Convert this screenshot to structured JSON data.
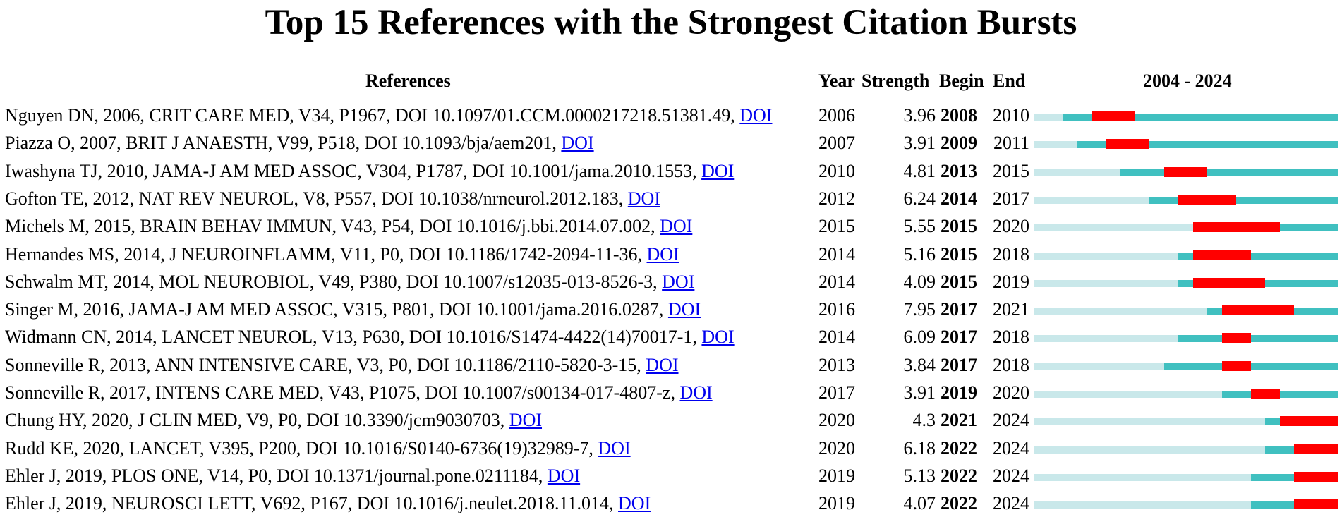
{
  "chart_data": {
    "type": "table",
    "title": "Top 15 References with the Strongest Citation Bursts",
    "columns": [
      "References",
      "Year",
      "Strength",
      "Begin",
      "End",
      "2004 - 2024"
    ],
    "range_start": 2004,
    "range_end": 2024,
    "link_label": "DOI",
    "colors": {
      "burst": "#ff0000",
      "active": "#40c0c0",
      "inactive": "#c9e8ea",
      "link": "#0000ee"
    },
    "rows": [
      {
        "reference": "Nguyen DN, 2006, CRIT CARE MED, V34, P1967, DOI 10.1097/01.CCM.0000217218.51381.49,",
        "year": 2006,
        "strength": "3.96",
        "begin": 2008,
        "end": 2010
      },
      {
        "reference": "Piazza O, 2007, BRIT J ANAESTH, V99, P518, DOI 10.1093/bja/aem201,",
        "year": 2007,
        "strength": "3.91",
        "begin": 2009,
        "end": 2011
      },
      {
        "reference": "Iwashyna TJ, 2010, JAMA-J AM MED ASSOC, V304, P1787, DOI 10.1001/jama.2010.1553,",
        "year": 2010,
        "strength": "4.81",
        "begin": 2013,
        "end": 2015
      },
      {
        "reference": "Gofton TE, 2012, NAT REV NEUROL, V8, P557, DOI 10.1038/nrneurol.2012.183,",
        "year": 2012,
        "strength": "6.24",
        "begin": 2014,
        "end": 2017
      },
      {
        "reference": "Michels M, 2015, BRAIN BEHAV IMMUN, V43, P54, DOI 10.1016/j.bbi.2014.07.002,",
        "year": 2015,
        "strength": "5.55",
        "begin": 2015,
        "end": 2020
      },
      {
        "reference": "Hernandes MS, 2014, J NEUROINFLAMM, V11, P0, DOI 10.1186/1742-2094-11-36,",
        "year": 2014,
        "strength": "5.16",
        "begin": 2015,
        "end": 2018
      },
      {
        "reference": "Schwalm MT, 2014, MOL NEUROBIOL, V49, P380, DOI 10.1007/s12035-013-8526-3,",
        "year": 2014,
        "strength": "4.09",
        "begin": 2015,
        "end": 2019
      },
      {
        "reference": "Singer M, 2016, JAMA-J AM MED ASSOC, V315, P801, DOI 10.1001/jama.2016.0287,",
        "year": 2016,
        "strength": "7.95",
        "begin": 2017,
        "end": 2021
      },
      {
        "reference": "Widmann CN, 2014, LANCET NEUROL, V13, P630, DOI 10.1016/S1474-4422(14)70017-1,",
        "year": 2014,
        "strength": "6.09",
        "begin": 2017,
        "end": 2018
      },
      {
        "reference": "Sonneville R, 2013, ANN INTENSIVE CARE, V3, P0, DOI 10.1186/2110-5820-3-15,",
        "year": 2013,
        "strength": "3.84",
        "begin": 2017,
        "end": 2018
      },
      {
        "reference": "Sonneville R, 2017, INTENS CARE MED, V43, P1075, DOI 10.1007/s00134-017-4807-z,",
        "year": 2017,
        "strength": "3.91",
        "begin": 2019,
        "end": 2020
      },
      {
        "reference": "Chung HY, 2020, J CLIN MED, V9, P0, DOI 10.3390/jcm9030703,",
        "year": 2020,
        "strength": "4.3",
        "begin": 2021,
        "end": 2024
      },
      {
        "reference": "Rudd KE, 2020, LANCET, V395, P200, DOI 10.1016/S0140-6736(19)32989-7,",
        "year": 2020,
        "strength": "6.18",
        "begin": 2022,
        "end": 2024
      },
      {
        "reference": "Ehler J, 2019, PLOS ONE, V14, P0, DOI 10.1371/journal.pone.0211184,",
        "year": 2019,
        "strength": "5.13",
        "begin": 2022,
        "end": 2024
      },
      {
        "reference": "Ehler J, 2019, NEUROSCI LETT, V692, P167, DOI 10.1016/j.neulet.2018.11.014,",
        "year": 2019,
        "strength": "4.07",
        "begin": 2022,
        "end": 2024
      }
    ]
  }
}
